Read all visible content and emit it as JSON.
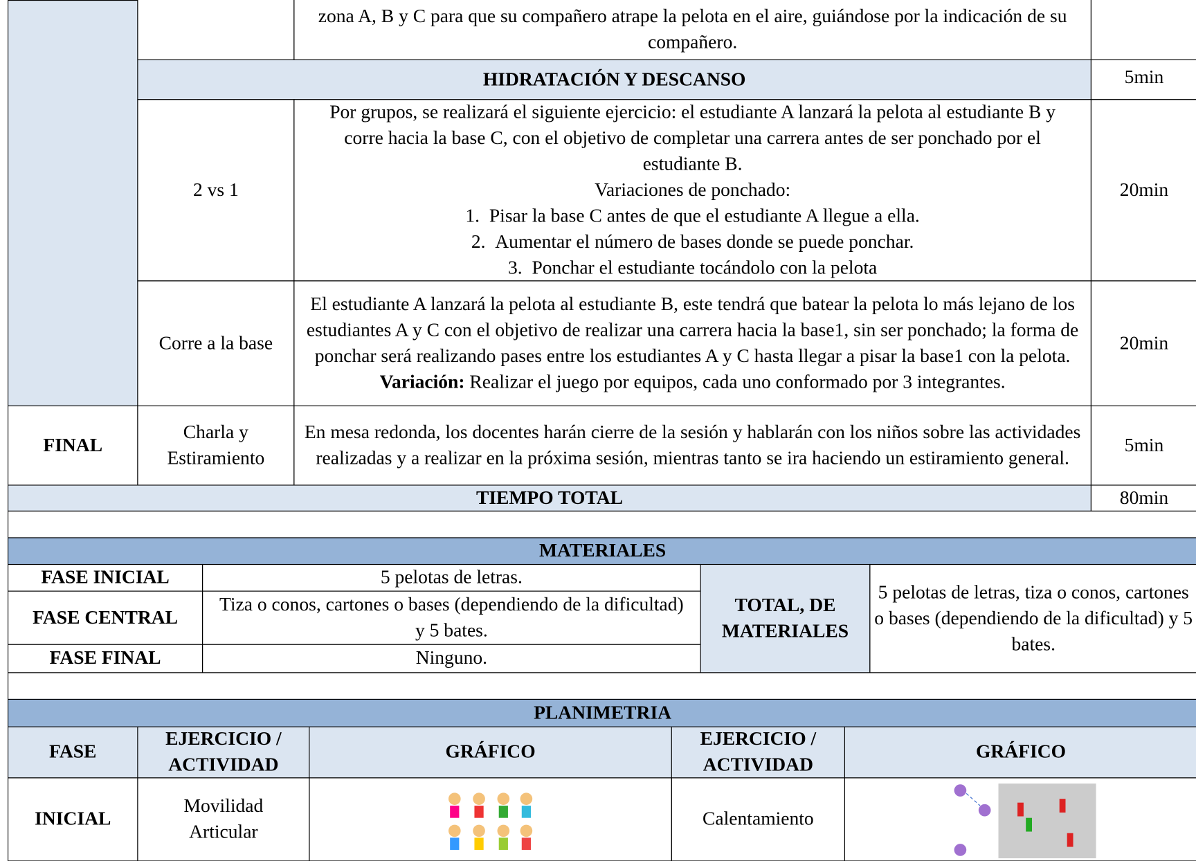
{
  "session_table": {
    "rows": [
      {
        "description": "zona A, B y C para que su compañero atrape la pelota en el aire, guiándose por la indicación de su compañero."
      },
      {
        "title": "HIDRATACIÓN Y DESCANSO",
        "time": "5min"
      },
      {
        "activity": "2 vs 1",
        "description": "Por grupos, se realizará el siguiente ejercicio: el estudiante A lanzará la pelota al estudiante B y corre hacia la base C, con el objetivo de completar una carrera antes de ser ponchado por el estudiante B.",
        "variations_title": "Variaciones de ponchado:",
        "variations": [
          {
            "number": "1.",
            "text": "Pisar la base C antes de que el estudiante A llegue a ella."
          },
          {
            "number": "2.",
            "text": "Aumentar el número de bases donde se puede ponchar."
          },
          {
            "number": "3.",
            "text": "Ponchar el estudiante tocándolo con la pelota"
          }
        ],
        "time": "20min"
      },
      {
        "activity": "Corre a la base",
        "description": "El estudiante A lanzará la pelota al estudiante B, este tendrá que batear la pelota lo más lejano de los estudiantes A y C con el objetivo de realizar una carrera hacia la base1, sin ser ponchado; la forma de ponchar será realizando pases entre los estudiantes A y C hasta llegar a pisar la base1 con la pelota.",
        "variation_label": "Variación:",
        "variation_text": "Realizar el juego por equipos, cada uno conformado por 3 integrantes.",
        "time": "20min"
      },
      {
        "phase": "FINAL",
        "activity": "Charla y Estiramiento",
        "description": "En mesa redonda, los docentes harán cierre de la sesión y hablarán con los niños sobre las actividades realizadas y a realizar en la próxima sesión, mientras tanto se ira haciendo un estiramiento general.",
        "time": "5min"
      },
      {
        "label": "TIEMPO TOTAL",
        "time": "80min"
      }
    ]
  },
  "materials": {
    "title": "MATERIALES",
    "rows": [
      {
        "phase": "FASE INICIAL",
        "items": "5 pelotas de letras."
      },
      {
        "phase": "FASE CENTRAL",
        "items": "Tiza o conos, cartones o bases (dependiendo de la dificultad) y 5 bates."
      },
      {
        "phase": "FASE FINAL",
        "items": "Ninguno."
      }
    ],
    "total_label": "TOTAL, DE MATERIALES",
    "total": "5 pelotas de letras, tiza o conos, cartones o bases (dependiendo de la dificultad) y 5 bates."
  },
  "planimetria": {
    "title": "PLANIMETRIA",
    "headers": [
      "FASE",
      "EJERCICIO / ACTIVIDAD",
      "GRÁFICO",
      "EJERCICIO / ACTIVIDAD",
      "GRÁFICO"
    ],
    "rows": [
      {
        "phase": "INICIAL",
        "activity1": "Movilidad Articular",
        "activity2": "Calentamiento"
      }
    ]
  }
}
